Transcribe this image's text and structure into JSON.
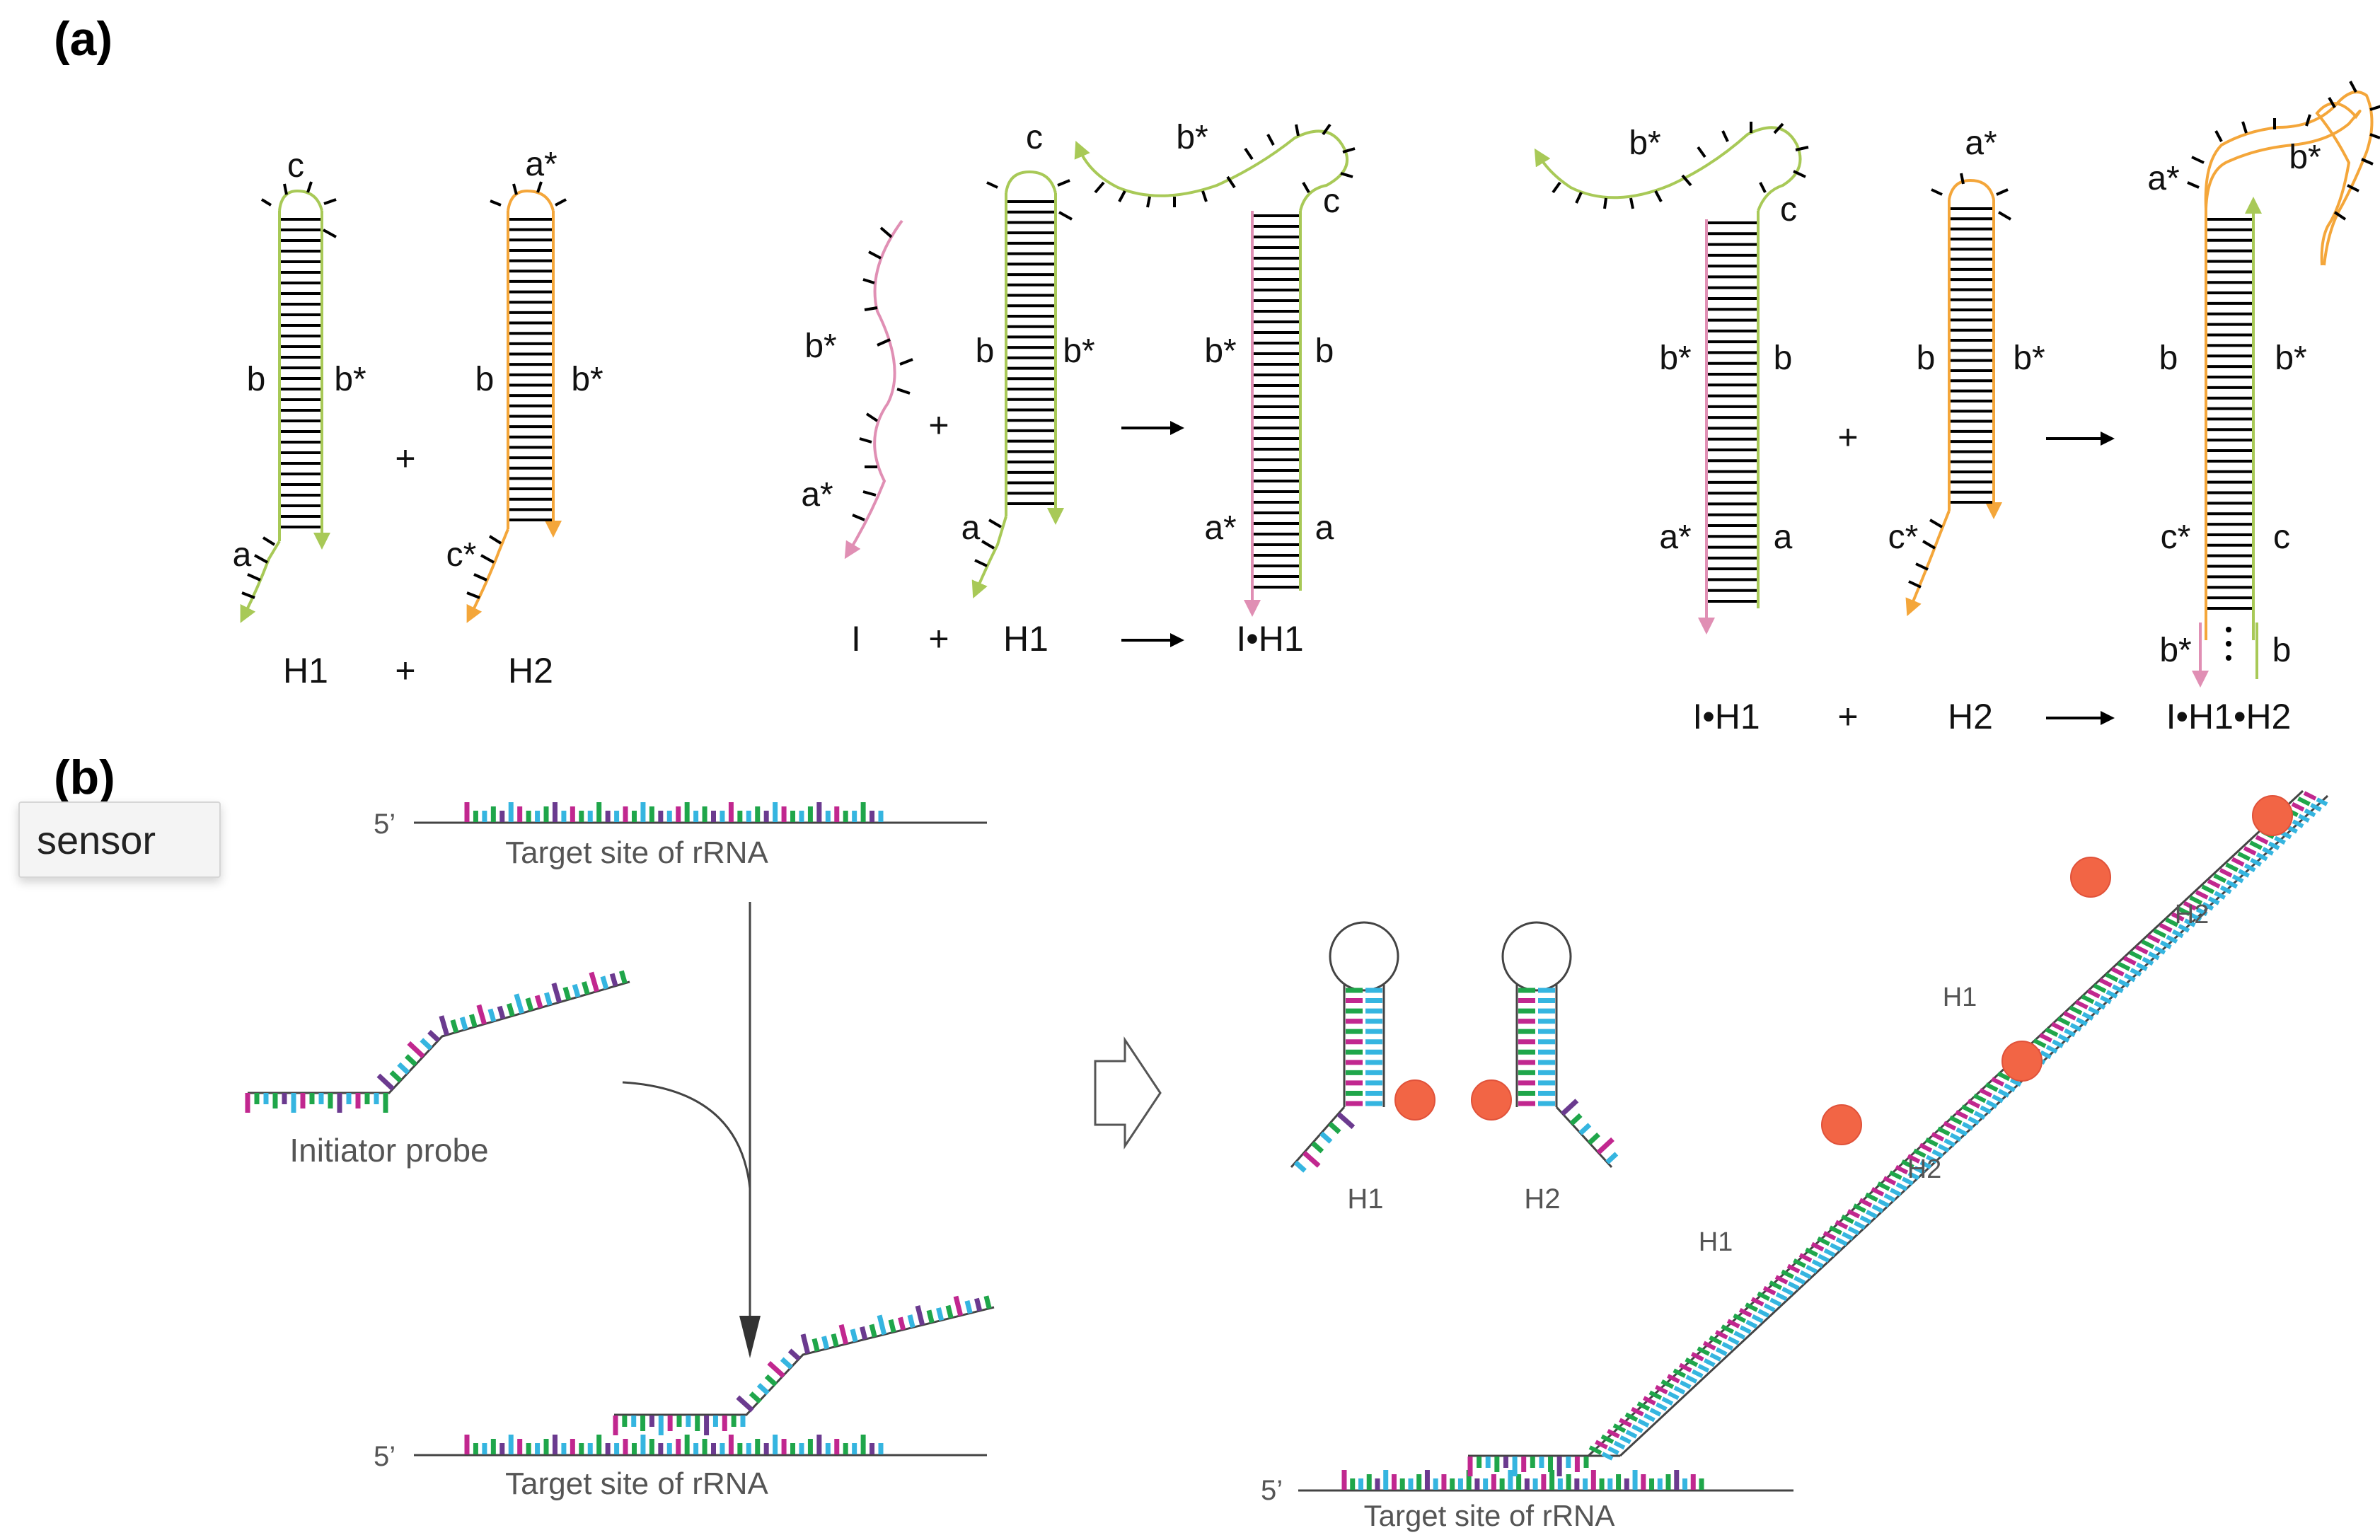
{
  "panel_a": {
    "label": "(a)",
    "hairpin_h1": {
      "loop": "c",
      "left": "b",
      "right": "b*",
      "tail": "a",
      "name": "H1"
    },
    "hairpin_h2": {
      "loop": "a*",
      "left": "b",
      "right": "b*",
      "tail": "c*",
      "name": "H2"
    },
    "plus": "+",
    "arrow": "→",
    "step1": {
      "initiator_top": "b*",
      "initiator_bottom": "a*",
      "h1_loop": "c",
      "h1_left": "b",
      "h1_right": "b*",
      "h1_tail": "a",
      "product_loop_b": "b*",
      "product_loop_c": "c",
      "product_left_top": "b*",
      "product_right_top": "b",
      "product_left_bottom": "a*",
      "product_right_bottom": "a",
      "eq_i": "I",
      "eq_h1": "H1",
      "eq_product": "I•H1"
    },
    "step2": {
      "ih1_loop_b": "b*",
      "ih1_loop_c": "c",
      "ih1_left_top": "b*",
      "ih1_right_top": "b",
      "ih1_left_bottom": "a*",
      "ih1_right_bottom": "a",
      "h2_loop": "a*",
      "h2_left": "b",
      "h2_right": "b*",
      "h2_tail": "c*",
      "product_loop_a": "a*",
      "product_loop_b": "b*",
      "product_left_top": "b",
      "product_right_top": "b*",
      "product_left_mid": "c*",
      "product_right_mid": "c",
      "product_left_bottom": "b*",
      "product_right_bottom": "b",
      "eq_ih1": "I•H1",
      "eq_h2": "H2",
      "eq_product": "I•H1•H2"
    }
  },
  "panel_b": {
    "label": "(b)",
    "five_prime": "5’",
    "target_label": "Target site of rRNA",
    "initiator_label": "Initiator probe",
    "h1_label": "H1",
    "h2_label": "H2",
    "chain_labels": [
      "H1",
      "H2",
      "H1",
      "H2"
    ]
  },
  "tooltip": {
    "text": "sensor"
  },
  "colors": {
    "green": "#a8c957",
    "orange": "#f4a63a",
    "pink": "#e08fb4",
    "bead": "#f26545",
    "nt_green": "#1fa64a",
    "nt_purple": "#6b3a8f",
    "nt_blue": "#35b5e0",
    "nt_magenta": "#c1278f"
  }
}
